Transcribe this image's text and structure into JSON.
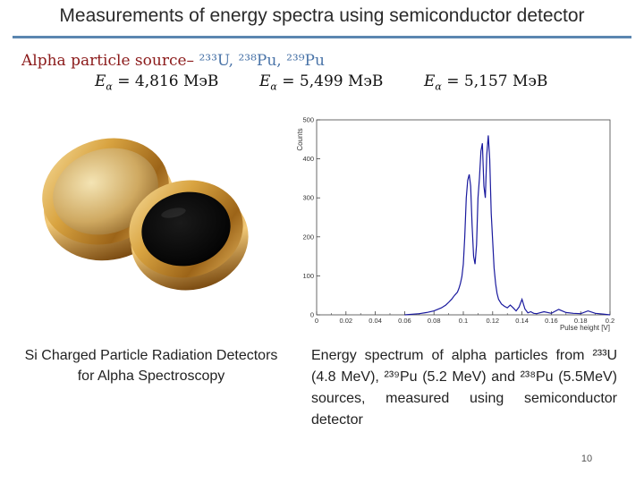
{
  "slide": {
    "title": "Measurements of energy spectra using semiconductor detector",
    "source_prefix": "Alpha particle source–",
    "source_isotopes": "²³³U, ²³⁸Pu, ²³⁹Pu",
    "energies": [
      {
        "value": "= 4,816 МэВ"
      },
      {
        "value": "= 5,499 МэВ"
      },
      {
        "value": "= 5,157 МэВ"
      }
    ],
    "caption_left": "Si Charged Particle Radiation Detectors for Alpha Spectroscopy",
    "caption_right": "Energy spectrum of alpha particles from ²³³U (4.8 MeV), ²³⁹Pu (5.2 MeV) and ²³⁸Pu (5.5MeV) sources, measured using semiconductor detector",
    "page_number": "10"
  },
  "chart_data": {
    "type": "line",
    "xlabel": "Pulse height [V]",
    "ylabel": "Counts",
    "xlim": [
      0,
      0.2
    ],
    "ylim": [
      0,
      500
    ],
    "x_ticks": [
      "0",
      "0.02",
      "0.04",
      "0.06",
      "0.08",
      "0.1",
      "0.12",
      "0.14",
      "0.16",
      "0.18",
      "0.2"
    ],
    "y_ticks": [
      "0",
      "100",
      "200",
      "300",
      "400",
      "500"
    ],
    "colors": {
      "series": "#1a1a9e"
    },
    "series": [
      {
        "x": [
          0.06,
          0.07,
          0.075,
          0.08,
          0.085,
          0.088,
          0.09,
          0.092,
          0.094,
          0.096,
          0.097,
          0.098,
          0.099,
          0.1,
          0.101,
          0.102,
          0.103,
          0.104,
          0.105,
          0.106,
          0.107,
          0.108,
          0.109,
          0.11,
          0.111,
          0.112,
          0.113,
          0.114,
          0.115,
          0.116,
          0.117,
          0.118,
          0.119,
          0.12,
          0.121,
          0.122,
          0.123,
          0.124,
          0.126,
          0.128,
          0.13,
          0.132,
          0.134,
          0.136,
          0.138,
          0.14,
          0.142,
          0.144,
          0.146,
          0.148,
          0.15,
          0.155,
          0.16,
          0.165,
          0.17,
          0.175,
          0.18,
          0.185,
          0.19,
          0.195,
          0.2
        ],
        "y": [
          0,
          3,
          6,
          10,
          18,
          25,
          32,
          40,
          50,
          58,
          68,
          80,
          98,
          130,
          200,
          300,
          345,
          360,
          330,
          230,
          150,
          130,
          180,
          300,
          350,
          420,
          440,
          330,
          300,
          410,
          460,
          400,
          260,
          190,
          120,
          80,
          55,
          40,
          28,
          22,
          18,
          25,
          18,
          10,
          20,
          40,
          15,
          5,
          8,
          4,
          3,
          8,
          4,
          14,
          6,
          4,
          3,
          10,
          4,
          2,
          0
        ]
      }
    ]
  }
}
